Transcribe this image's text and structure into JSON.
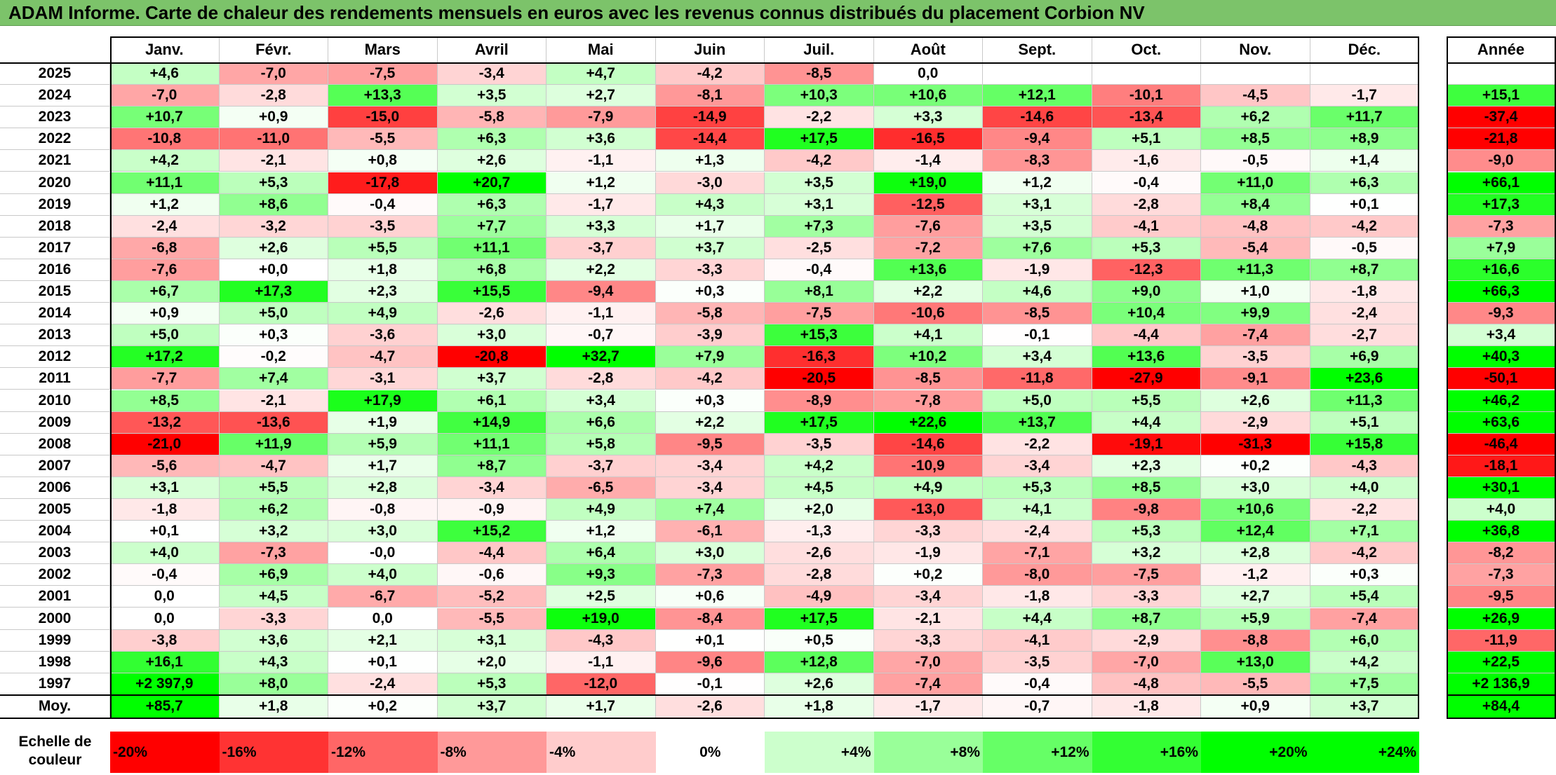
{
  "title": "ADAM Informe. Carte de chaleur des rendements mensuels en euros avec les revenus connus distribués du placement Corbion NV",
  "chart_data": {
    "type": "heatmap",
    "title": "ADAM Informe. Carte de chaleur des rendements mensuels en euros avec les revenus connus distribués du placement Corbion NV",
    "columns": [
      "Janv.",
      "Févr.",
      "Mars",
      "Avril",
      "Mai",
      "Juin",
      "Juil.",
      "Août",
      "Sept.",
      "Oct.",
      "Nov.",
      "Déc."
    ],
    "year_header": "Année",
    "rows": [
      {
        "year": "2025",
        "months": [
          "+4,6",
          "-7,0",
          "-7,5",
          "-3,4",
          "+4,7",
          "-4,2",
          "-8,5",
          "0,0",
          "",
          "",
          "",
          ""
        ],
        "annual": ""
      },
      {
        "year": "2024",
        "months": [
          "-7,0",
          "-2,8",
          "+13,3",
          "+3,5",
          "+2,7",
          "-8,1",
          "+10,3",
          "+10,6",
          "+12,1",
          "-10,1",
          "-4,5",
          "-1,7"
        ],
        "annual": "+15,1"
      },
      {
        "year": "2023",
        "months": [
          "+10,7",
          "+0,9",
          "-15,0",
          "-5,8",
          "-7,9",
          "-14,9",
          "-2,2",
          "+3,3",
          "-14,6",
          "-13,4",
          "+6,2",
          "+11,7"
        ],
        "annual": "-37,4"
      },
      {
        "year": "2022",
        "months": [
          "-10,8",
          "-11,0",
          "-5,5",
          "+6,3",
          "+3,6",
          "-14,4",
          "+17,5",
          "-16,5",
          "-9,4",
          "+5,1",
          "+8,5",
          "+8,9"
        ],
        "annual": "-21,8"
      },
      {
        "year": "2021",
        "months": [
          "+4,2",
          "-2,1",
          "+0,8",
          "+2,6",
          "-1,1",
          "+1,3",
          "-4,2",
          "-1,4",
          "-8,3",
          "-1,6",
          "-0,5",
          "+1,4"
        ],
        "annual": "-9,0"
      },
      {
        "year": "2020",
        "months": [
          "+11,1",
          "+5,3",
          "-17,8",
          "+20,7",
          "+1,2",
          "-3,0",
          "+3,5",
          "+19,0",
          "+1,2",
          "-0,4",
          "+11,0",
          "+6,3"
        ],
        "annual": "+66,1"
      },
      {
        "year": "2019",
        "months": [
          "+1,2",
          "+8,6",
          "-0,4",
          "+6,3",
          "-1,7",
          "+4,3",
          "+3,1",
          "-12,5",
          "+3,1",
          "-2,8",
          "+8,4",
          "+0,1"
        ],
        "annual": "+17,3"
      },
      {
        "year": "2018",
        "months": [
          "-2,4",
          "-3,2",
          "-3,5",
          "+7,7",
          "+3,3",
          "+1,7",
          "+7,3",
          "-7,6",
          "+3,5",
          "-4,1",
          "-4,8",
          "-4,2"
        ],
        "annual": "-7,3"
      },
      {
        "year": "2017",
        "months": [
          "-6,8",
          "+2,6",
          "+5,5",
          "+11,1",
          "-3,7",
          "+3,7",
          "-2,5",
          "-7,2",
          "+7,6",
          "+5,3",
          "-5,4",
          "-0,5"
        ],
        "annual": "+7,9"
      },
      {
        "year": "2016",
        "months": [
          "-7,6",
          "+0,0",
          "+1,8",
          "+6,8",
          "+2,2",
          "-3,3",
          "-0,4",
          "+13,6",
          "-1,9",
          "-12,3",
          "+11,3",
          "+8,7"
        ],
        "annual": "+16,6"
      },
      {
        "year": "2015",
        "months": [
          "+6,7",
          "+17,3",
          "+2,3",
          "+15,5",
          "-9,4",
          "+0,3",
          "+8,1",
          "+2,2",
          "+4,6",
          "+9,0",
          "+1,0",
          "-1,8"
        ],
        "annual": "+66,3"
      },
      {
        "year": "2014",
        "months": [
          "+0,9",
          "+5,0",
          "+4,9",
          "-2,6",
          "-1,1",
          "-5,8",
          "-7,5",
          "-10,6",
          "-8,5",
          "+10,4",
          "+9,9",
          "-2,4"
        ],
        "annual": "-9,3"
      },
      {
        "year": "2013",
        "months": [
          "+5,0",
          "+0,3",
          "-3,6",
          "+3,0",
          "-0,7",
          "-3,9",
          "+15,3",
          "+4,1",
          "-0,1",
          "-4,4",
          "-7,4",
          "-2,7"
        ],
        "annual": "+3,4"
      },
      {
        "year": "2012",
        "months": [
          "+17,2",
          "-0,2",
          "-4,7",
          "-20,8",
          "+32,7",
          "+7,9",
          "-16,3",
          "+10,2",
          "+3,4",
          "+13,6",
          "-3,5",
          "+6,9"
        ],
        "annual": "+40,3"
      },
      {
        "year": "2011",
        "months": [
          "-7,7",
          "+7,4",
          "-3,1",
          "+3,7",
          "-2,8",
          "-4,2",
          "-20,5",
          "-8,5",
          "-11,8",
          "-27,9",
          "-9,1",
          "+23,6"
        ],
        "annual": "-50,1"
      },
      {
        "year": "2010",
        "months": [
          "+8,5",
          "-2,1",
          "+17,9",
          "+6,1",
          "+3,4",
          "+0,3",
          "-8,9",
          "-7,8",
          "+5,0",
          "+5,5",
          "+2,6",
          "+11,3"
        ],
        "annual": "+46,2"
      },
      {
        "year": "2009",
        "months": [
          "-13,2",
          "-13,6",
          "+1,9",
          "+14,9",
          "+6,6",
          "+2,2",
          "+17,5",
          "+22,6",
          "+13,7",
          "+4,4",
          "-2,9",
          "+5,1"
        ],
        "annual": "+63,6"
      },
      {
        "year": "2008",
        "months": [
          "-21,0",
          "+11,9",
          "+5,9",
          "+11,1",
          "+5,8",
          "-9,5",
          "-3,5",
          "-14,6",
          "-2,2",
          "-19,1",
          "-31,3",
          "+15,8"
        ],
        "annual": "-46,4"
      },
      {
        "year": "2007",
        "months": [
          "-5,6",
          "-4,7",
          "+1,7",
          "+8,7",
          "-3,7",
          "-3,4",
          "+4,2",
          "-10,9",
          "-3,4",
          "+2,3",
          "+0,2",
          "-4,3"
        ],
        "annual": "-18,1"
      },
      {
        "year": "2006",
        "months": [
          "+3,1",
          "+5,5",
          "+2,8",
          "-3,4",
          "-6,5",
          "-3,4",
          "+4,5",
          "+4,9",
          "+5,3",
          "+8,5",
          "+3,0",
          "+4,0"
        ],
        "annual": "+30,1"
      },
      {
        "year": "2005",
        "months": [
          "-1,8",
          "+6,2",
          "-0,8",
          "-0,9",
          "+4,9",
          "+7,4",
          "+2,0",
          "-13,0",
          "+4,1",
          "-9,8",
          "+10,6",
          "-2,2"
        ],
        "annual": "+4,0"
      },
      {
        "year": "2004",
        "months": [
          "+0,1",
          "+3,2",
          "+3,0",
          "+15,2",
          "+1,2",
          "-6,1",
          "-1,3",
          "-3,3",
          "-2,4",
          "+5,3",
          "+12,4",
          "+7,1"
        ],
        "annual": "+36,8"
      },
      {
        "year": "2003",
        "months": [
          "+4,0",
          "-7,3",
          "-0,0",
          "-4,4",
          "+6,4",
          "+3,0",
          "-2,6",
          "-1,9",
          "-7,1",
          "+3,2",
          "+2,8",
          "-4,2"
        ],
        "annual": "-8,2"
      },
      {
        "year": "2002",
        "months": [
          "-0,4",
          "+6,9",
          "+4,0",
          "-0,6",
          "+9,3",
          "-7,3",
          "-2,8",
          "+0,2",
          "-8,0",
          "-7,5",
          "-1,2",
          "+0,3"
        ],
        "annual": "-7,3"
      },
      {
        "year": "2001",
        "months": [
          "0,0",
          "+4,5",
          "-6,7",
          "-5,2",
          "+2,5",
          "+0,6",
          "-4,9",
          "-3,4",
          "-1,8",
          "-3,3",
          "+2,7",
          "+5,4"
        ],
        "annual": "-9,5"
      },
      {
        "year": "2000",
        "months": [
          "0,0",
          "-3,3",
          "0,0",
          "-5,5",
          "+19,0",
          "-8,4",
          "+17,5",
          "-2,1",
          "+4,4",
          "+8,7",
          "+5,9",
          "-7,4"
        ],
        "annual": "+26,9"
      },
      {
        "year": "1999",
        "months": [
          "-3,8",
          "+3,6",
          "+2,1",
          "+3,1",
          "-4,3",
          "+0,1",
          "+0,5",
          "-3,3",
          "-4,1",
          "-2,9",
          "-8,8",
          "+6,0"
        ],
        "annual": "-11,9"
      },
      {
        "year": "1998",
        "months": [
          "+16,1",
          "+4,3",
          "+0,1",
          "+2,0",
          "-1,1",
          "-9,6",
          "+12,8",
          "-7,0",
          "-3,5",
          "-7,0",
          "+13,0",
          "+4,2"
        ],
        "annual": "+22,5"
      },
      {
        "year": "1997",
        "months": [
          "+2 397,9",
          "+8,0",
          "-2,4",
          "+5,3",
          "-12,0",
          "-0,1",
          "+2,6",
          "-7,4",
          "-0,4",
          "-4,8",
          "-5,5",
          "+7,5"
        ],
        "annual": "+2 136,9"
      }
    ],
    "average": {
      "label": "Moy.",
      "months": [
        "+85,7",
        "+1,8",
        "+0,2",
        "+3,7",
        "+1,7",
        "-2,6",
        "+1,8",
        "-1,7",
        "-0,7",
        "-1,8",
        "+0,9",
        "+3,7"
      ],
      "annual": "+84,4"
    },
    "scale": {
      "label": "Echelle de couleur",
      "steps": [
        {
          "label": "-20%",
          "value": -20
        },
        {
          "label": "-16%",
          "value": -16
        },
        {
          "label": "-12%",
          "value": -12
        },
        {
          "label": "-8%",
          "value": -8
        },
        {
          "label": "-4%",
          "value": -4
        },
        {
          "label": "0%",
          "value": 0
        },
        {
          "label": "+4%",
          "value": 4
        },
        {
          "label": "+8%",
          "value": 8
        },
        {
          "label": "+12%",
          "value": 12
        },
        {
          "label": "+16%",
          "value": 16
        },
        {
          "label": "+20%",
          "value": 20
        },
        {
          "label": "+24%",
          "value": 24
        }
      ]
    },
    "colors": {
      "negative_max": "#ff0000",
      "neutral": "#ffffff",
      "positive_max": "#00ff00",
      "title_bar": "#7cc36a"
    }
  }
}
